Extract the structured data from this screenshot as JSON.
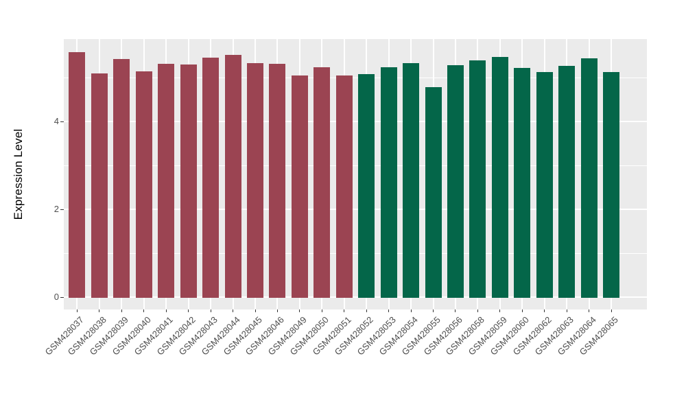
{
  "chart_data": {
    "type": "bar",
    "title": "",
    "xlabel": "",
    "ylabel": "Expression Level",
    "legend": "none",
    "grid": "on",
    "panel_bg": "#ebebeb",
    "grid_color": "#ffffff",
    "axis_text_color": "#4d4d4d",
    "tick_mark_color": "#333333",
    "ylim": [
      0,
      5.88
    ],
    "yticks": [
      {
        "value": 0,
        "label": "0"
      },
      {
        "value": 2,
        "label": "2"
      },
      {
        "value": 4,
        "label": "4"
      }
    ],
    "yticks_minor": [
      1,
      3,
      5
    ],
    "group_colors": {
      "A": "#9b4452",
      "B": "#046649"
    },
    "bars": [
      {
        "label": "GSM428037",
        "value": 5.6,
        "group": "A"
      },
      {
        "label": "GSM428038",
        "value": 5.11,
        "group": "A"
      },
      {
        "label": "GSM428039",
        "value": 5.44,
        "group": "A"
      },
      {
        "label": "GSM428040",
        "value": 5.16,
        "group": "A"
      },
      {
        "label": "GSM428041",
        "value": 5.33,
        "group": "A"
      },
      {
        "label": "GSM428042",
        "value": 5.31,
        "group": "A"
      },
      {
        "label": "GSM428043",
        "value": 5.47,
        "group": "A"
      },
      {
        "label": "GSM428044",
        "value": 5.53,
        "group": "A"
      },
      {
        "label": "GSM428045",
        "value": 5.34,
        "group": "A"
      },
      {
        "label": "GSM428046",
        "value": 5.33,
        "group": "A"
      },
      {
        "label": "GSM428049",
        "value": 5.06,
        "group": "A"
      },
      {
        "label": "GSM428050",
        "value": 5.25,
        "group": "A"
      },
      {
        "label": "GSM428051",
        "value": 5.07,
        "group": "A"
      },
      {
        "label": "GSM428052",
        "value": 5.09,
        "group": "B"
      },
      {
        "label": "GSM428053",
        "value": 5.25,
        "group": "B"
      },
      {
        "label": "GSM428054",
        "value": 5.34,
        "group": "B"
      },
      {
        "label": "GSM428055",
        "value": 4.8,
        "group": "B"
      },
      {
        "label": "GSM428056",
        "value": 5.3,
        "group": "B"
      },
      {
        "label": "GSM428058",
        "value": 5.41,
        "group": "B"
      },
      {
        "label": "GSM428059",
        "value": 5.48,
        "group": "B"
      },
      {
        "label": "GSM428060",
        "value": 5.23,
        "group": "B"
      },
      {
        "label": "GSM428062",
        "value": 5.14,
        "group": "B"
      },
      {
        "label": "GSM428063",
        "value": 5.28,
        "group": "B"
      },
      {
        "label": "GSM428064",
        "value": 5.45,
        "group": "B"
      },
      {
        "label": "GSM428065",
        "value": 5.14,
        "group": "B"
      }
    ]
  }
}
